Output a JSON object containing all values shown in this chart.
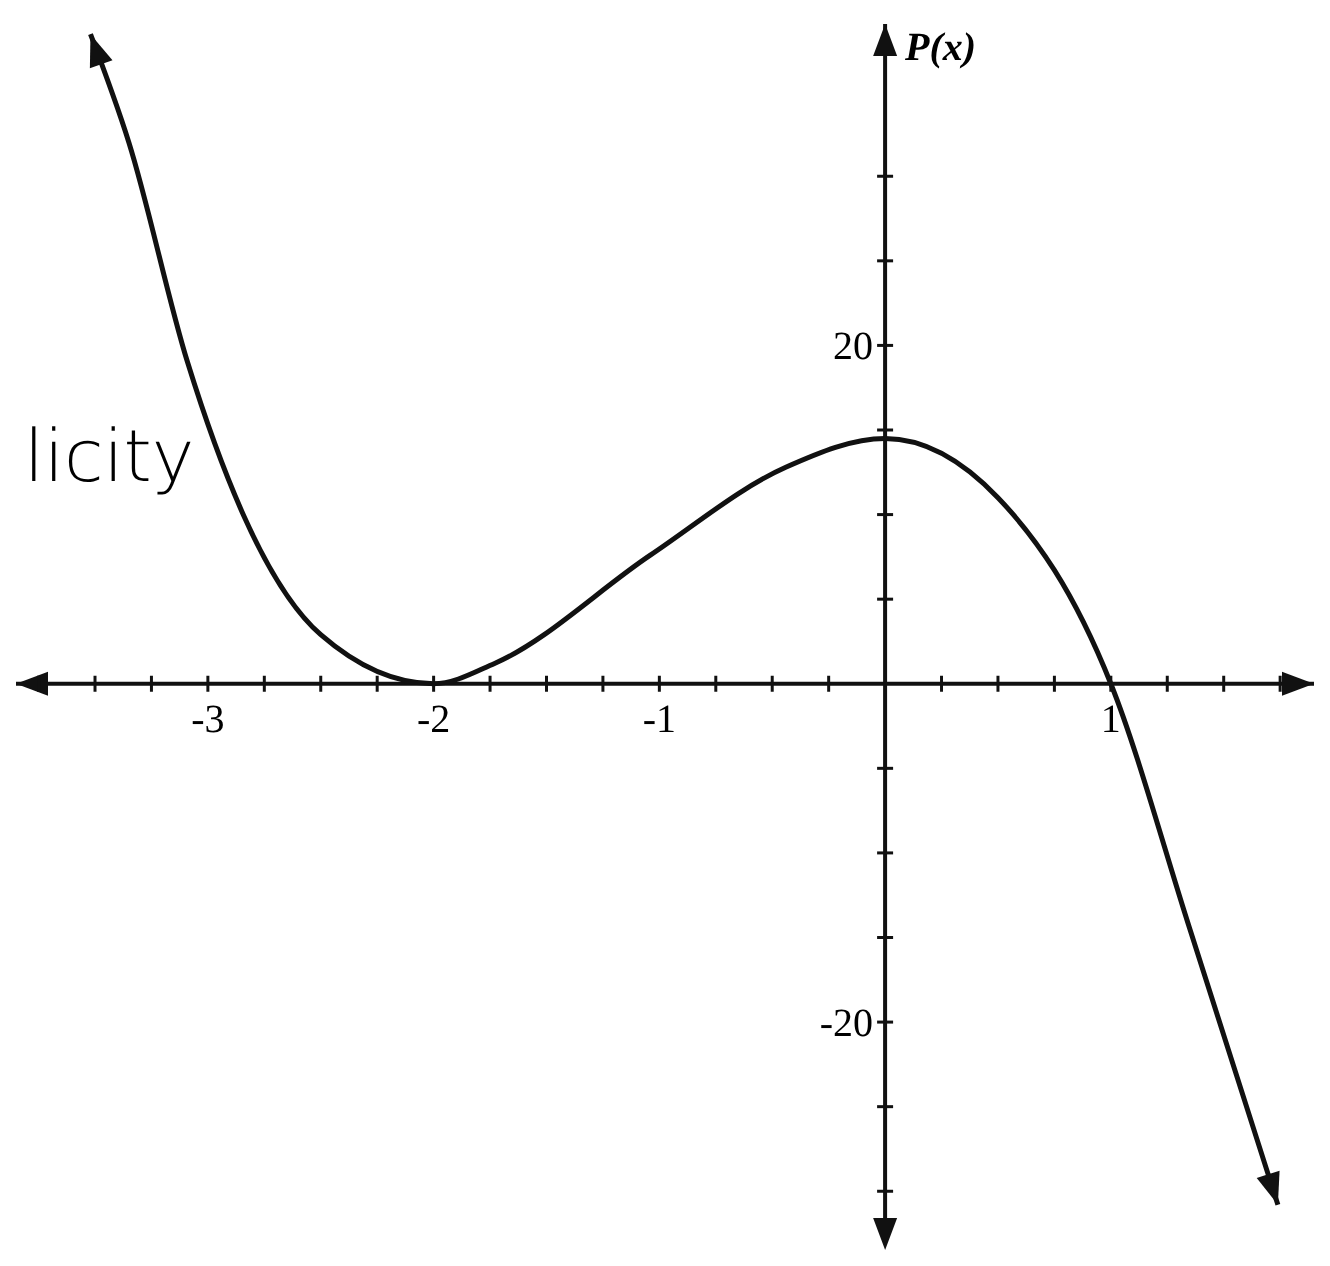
{
  "chart_data": {
    "type": "line",
    "ylabel": "P(x)",
    "annotations": [
      "licity"
    ],
    "x": [
      -3.52,
      -3.35,
      -3.09,
      -2.84,
      -2.5,
      -2,
      -1.73,
      -1.04,
      -0.44,
      0,
      0.5,
      1,
      1.35,
      1.74
    ],
    "series": [
      {
        "color": "#111111",
        "values": [
          38.4,
          32,
          19,
          9.9,
          2.9,
          0,
          1.2,
          7.6,
          12.8,
          14.5,
          11,
          0,
          -14.5,
          -30.8
        ]
      }
    ],
    "xlim": [
      -3.85,
      1.9
    ],
    "ylim": [
      -33,
      39
    ],
    "xticks": [
      {
        "value": -3.75,
        "label": null
      },
      {
        "value": -3.5,
        "label": null
      },
      {
        "value": -3.25,
        "label": null
      },
      -3,
      {
        "value": -2.75,
        "label": null
      },
      {
        "value": -2.5,
        "label": null
      },
      {
        "value": -2.25,
        "label": null
      },
      -2,
      {
        "value": -1.75,
        "label": null
      },
      {
        "value": -1.5,
        "label": null
      },
      {
        "value": -1.25,
        "label": null
      },
      -1,
      {
        "value": -0.75,
        "label": null
      },
      {
        "value": -0.5,
        "label": null
      },
      {
        "value": -0.25,
        "label": null
      },
      {
        "value": 0.25,
        "label": null
      },
      {
        "value": 0.5,
        "label": null
      },
      {
        "value": 0.75,
        "label": null
      },
      1,
      {
        "value": 1.25,
        "label": null
      },
      {
        "value": 1.5,
        "label": null
      },
      {
        "value": 1.75,
        "label": null
      }
    ],
    "yticks": [
      {
        "value": -30,
        "label": null
      },
      {
        "value": -25,
        "label": null
      },
      -20,
      {
        "value": -15,
        "label": null
      },
      {
        "value": -10,
        "label": null
      },
      {
        "value": -5,
        "label": null
      },
      {
        "value": 5,
        "label": null
      },
      {
        "value": 10,
        "label": null
      },
      {
        "value": 15,
        "label": null
      },
      20,
      {
        "value": 25,
        "label": null
      },
      {
        "value": 30,
        "label": null
      }
    ],
    "grid": false,
    "marker": "none",
    "line_style": "solid"
  }
}
